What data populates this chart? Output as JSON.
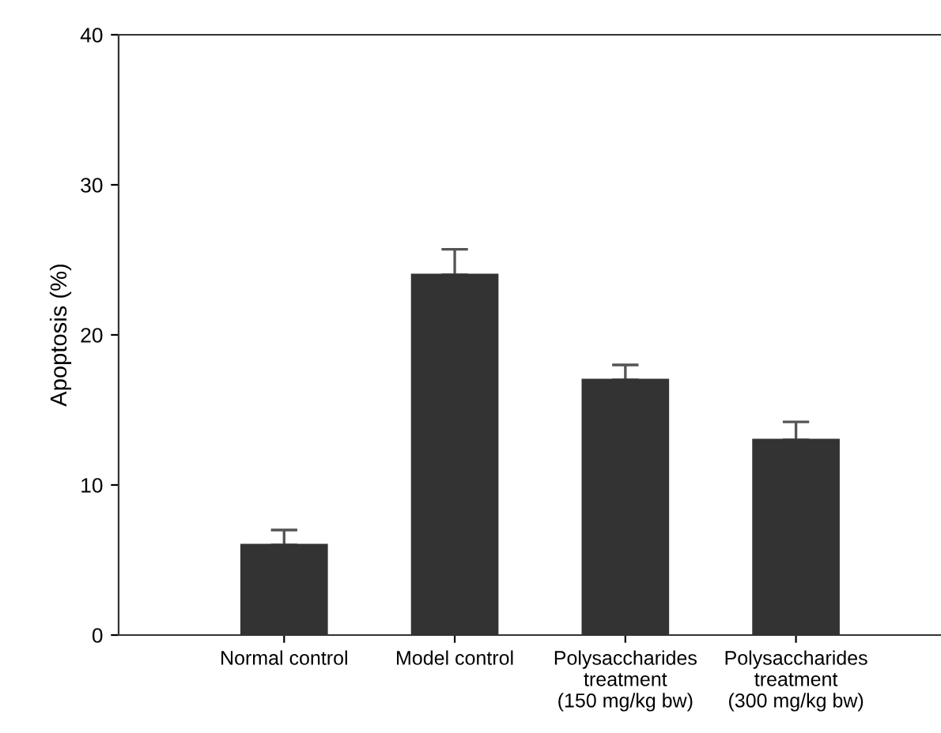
{
  "chart_data": {
    "type": "bar",
    "ylabel": "Apoptosis (%)",
    "categories": [
      "Normal control",
      "Model control",
      "Polysaccharides\ntreatment\n(150 mg/kg bw)",
      "Polysaccharides\ntreatment\n(300 mg/kg bw)"
    ],
    "values": [
      6,
      24,
      17,
      13
    ],
    "errors": [
      1,
      1.7,
      1,
      1.2
    ],
    "color": "#333333",
    "ylim": [
      0,
      40
    ],
    "yticks": [
      0,
      10,
      20,
      30,
      40
    ],
    "grid": false,
    "legend": false
  }
}
